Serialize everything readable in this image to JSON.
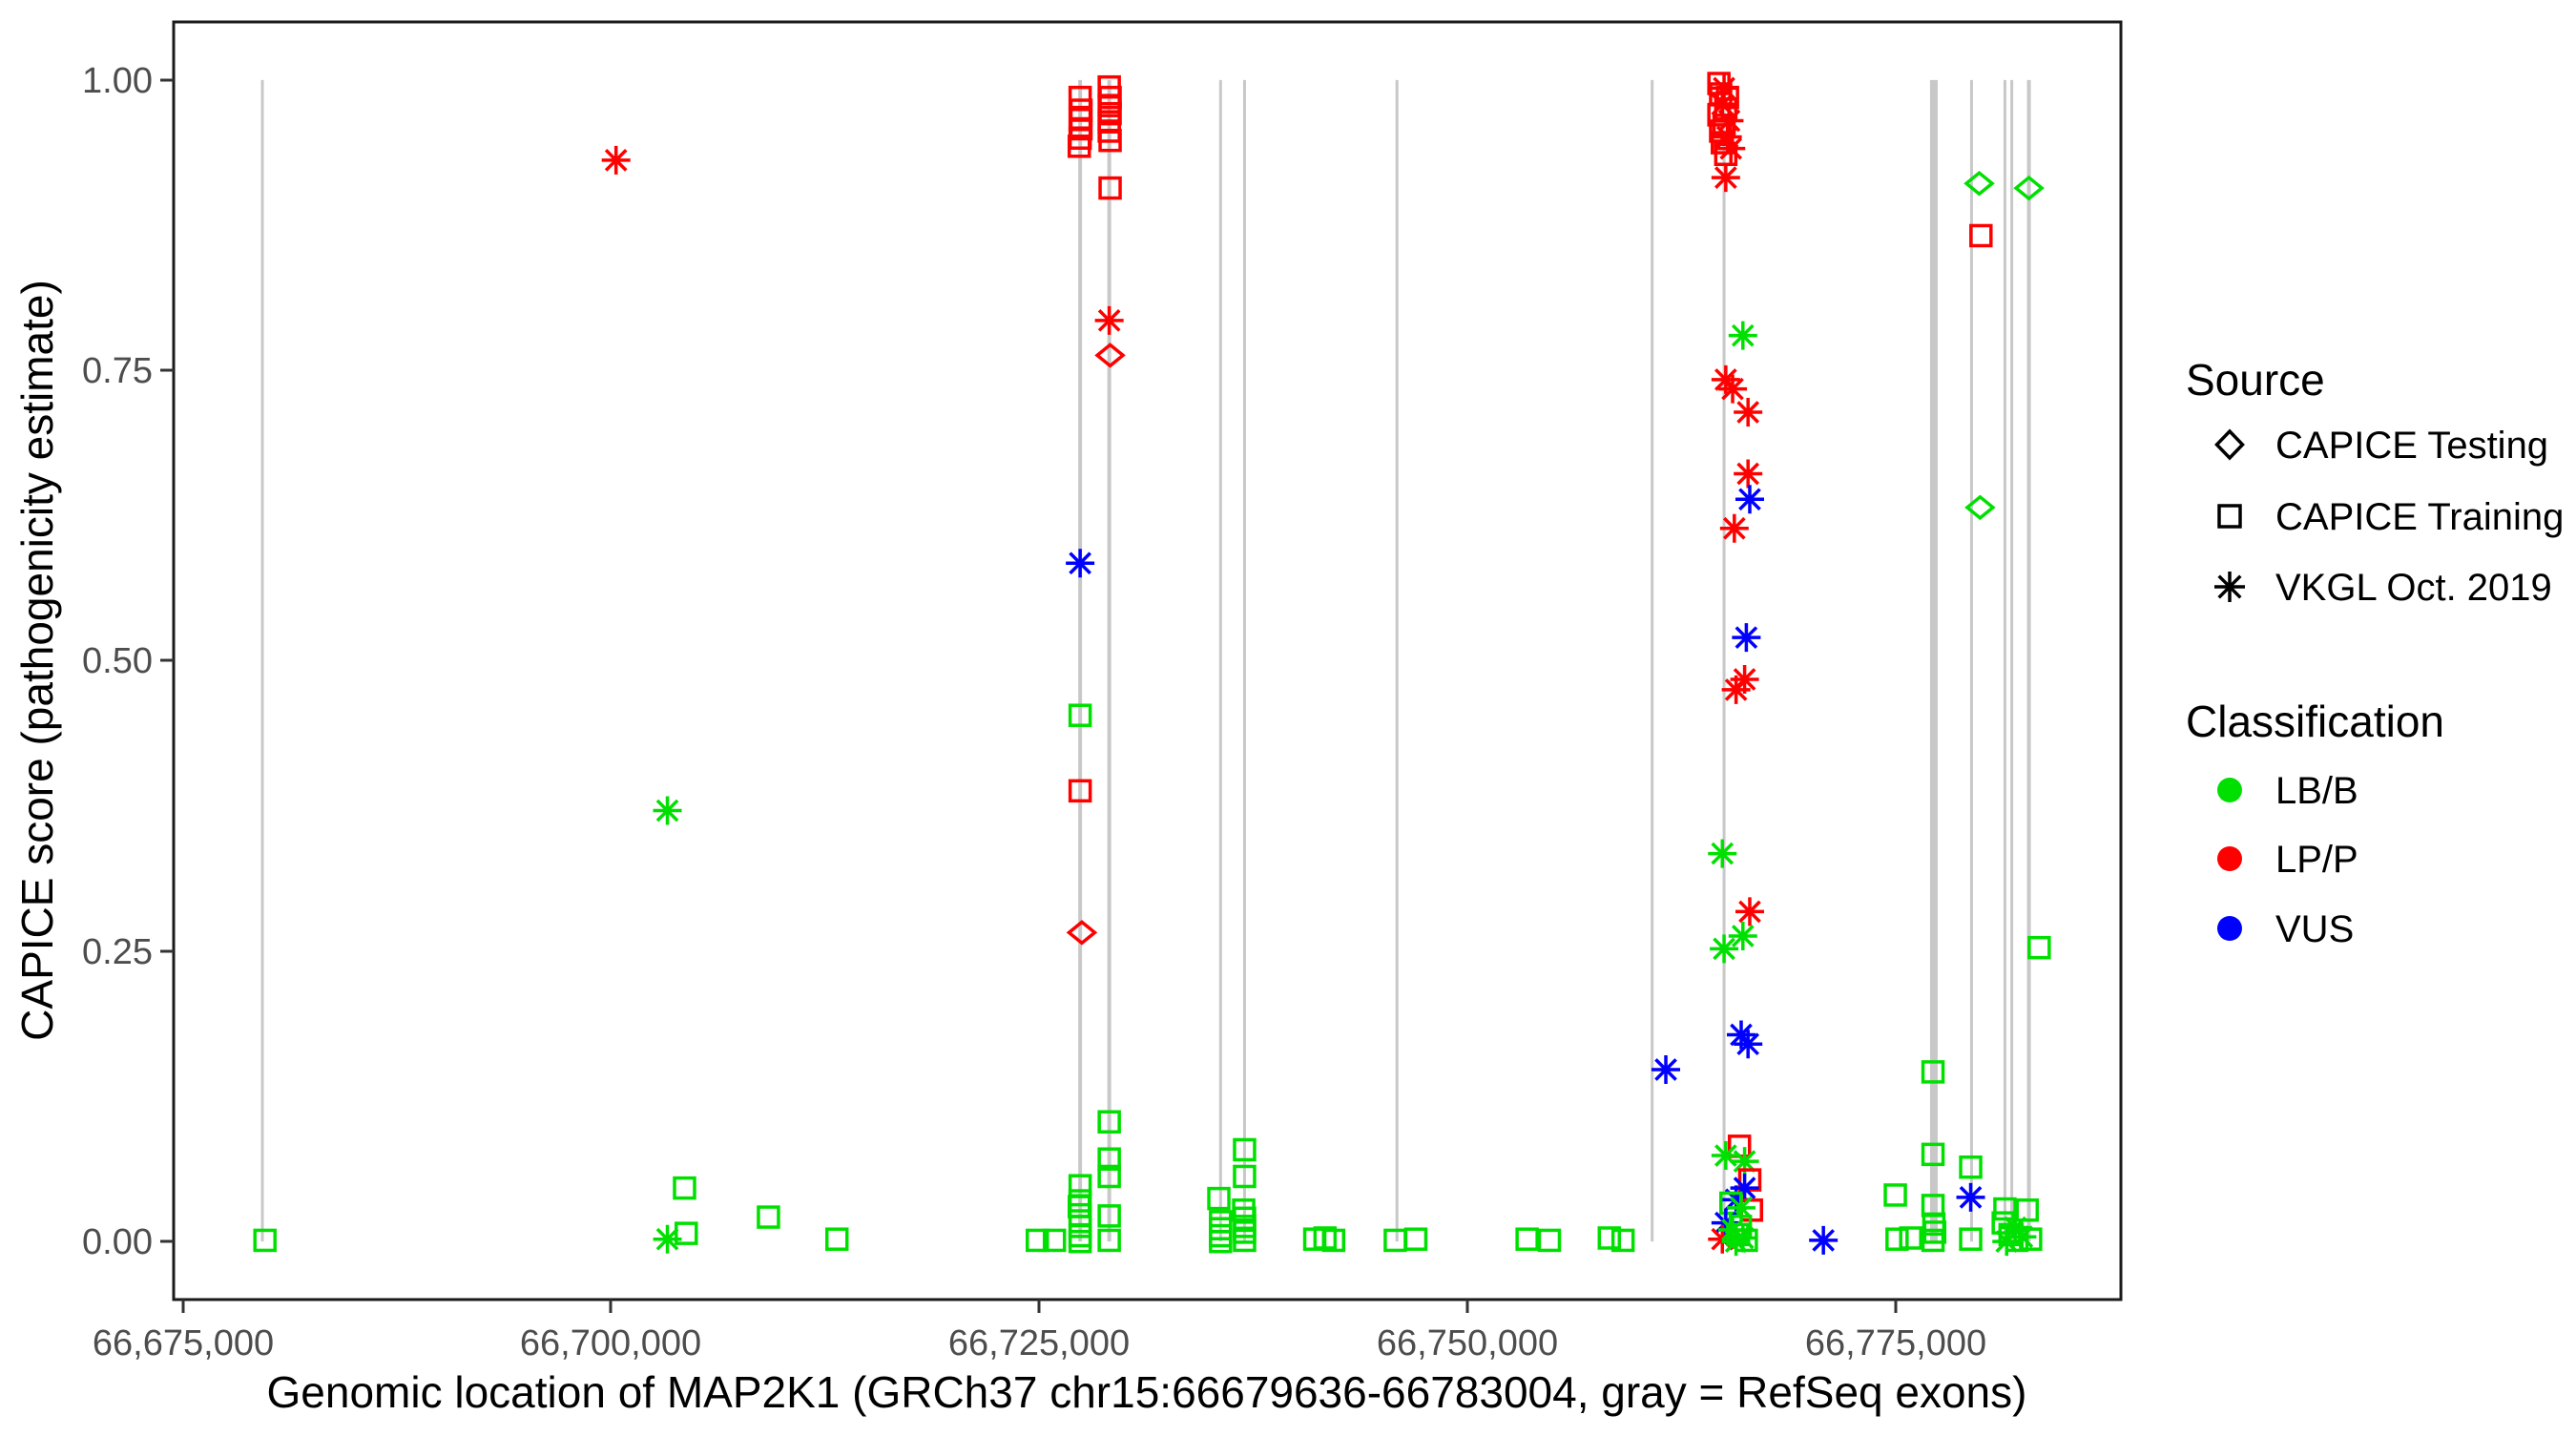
{
  "chart_data": {
    "type": "scatter",
    "title": "",
    "xlabel": "Genomic location of MAP2K1 (GRCh37 chr15:66679636-66783004, gray = RefSeq exons)",
    "ylabel": "CAPICE score (pathogenicity estimate)",
    "xlim": [
      66674468,
      66788172
    ],
    "ylim": [
      -0.05,
      1.05
    ],
    "grid": false,
    "legend_position": "right",
    "x_ticks": [
      {
        "value": 66675000,
        "label": "66,675,000"
      },
      {
        "value": 66700000,
        "label": "66,700,000"
      },
      {
        "value": 66725000,
        "label": "66,725,000"
      },
      {
        "value": 66750000,
        "label": "66,750,000"
      },
      {
        "value": 66775000,
        "label": "66,775,000"
      }
    ],
    "y_ticks": [
      {
        "value": 0.0,
        "label": "0.00"
      },
      {
        "value": 0.25,
        "label": "0.25"
      },
      {
        "value": 0.5,
        "label": "0.50"
      },
      {
        "value": 0.75,
        "label": "0.75"
      },
      {
        "value": 1.0,
        "label": "1.00"
      }
    ],
    "series_encoding": {
      "shape_source": {
        "d": "CAPICE Testing",
        "s": "CAPICE Training",
        "a": "VKGL Oct. 2019"
      },
      "color_classification": {
        "g": "LB/B",
        "r": "LP/P",
        "b": "VUS"
      }
    },
    "colors": {
      "g": "#00E000",
      "r": "#FF0000",
      "b": "#0000FF"
    },
    "exon_segments": {
      "color": "#C8C8C8",
      "y_from": 0,
      "y_to": 1,
      "lines": [
        {
          "loc": 66679650,
          "w": 3
        },
        {
          "loc": 66727400,
          "w": 4
        },
        {
          "loc": 66729100,
          "w": 4
        },
        {
          "loc": 66735600,
          "w": 3
        },
        {
          "loc": 66737000,
          "w": 3
        },
        {
          "loc": 66745900,
          "w": 3
        },
        {
          "loc": 66760800,
          "w": 3
        },
        {
          "loc": 66765000,
          "w": 3
        },
        {
          "loc": 66777250,
          "w": 8
        },
        {
          "loc": 66779450,
          "w": 3
        },
        {
          "loc": 66781400,
          "w": 3
        },
        {
          "loc": 66781800,
          "w": 3
        },
        {
          "loc": 66782800,
          "w": 4
        }
      ]
    },
    "points": [
      [
        66679800,
        0.001,
        "s",
        "g"
      ],
      [
        66700300,
        0.931,
        "a",
        "r"
      ],
      [
        66703300,
        0.371,
        "a",
        "g"
      ],
      [
        66704300,
        0.046,
        "s",
        "g"
      ],
      [
        66703300,
        0.002,
        "a",
        "g"
      ],
      [
        66704400,
        0.007,
        "s",
        "g"
      ],
      [
        66709200,
        0.021,
        "s",
        "g"
      ],
      [
        66713200,
        0.002,
        "s",
        "g"
      ],
      [
        66724900,
        0.001,
        "s",
        "g"
      ],
      [
        66725900,
        0.001,
        "s",
        "g"
      ],
      [
        66727400,
        0.985,
        "s",
        "r"
      ],
      [
        66727450,
        0.974,
        "s",
        "r"
      ],
      [
        66727400,
        0.966,
        "s",
        "r"
      ],
      [
        66727450,
        0.958,
        "s",
        "r"
      ],
      [
        66727400,
        0.95,
        "s",
        "r"
      ],
      [
        66727350,
        0.943,
        "s",
        "r"
      ],
      [
        66727400,
        0.584,
        "a",
        "b"
      ],
      [
        66727400,
        0.453,
        "s",
        "g"
      ],
      [
        66727400,
        0.388,
        "s",
        "r"
      ],
      [
        66727500,
        0.266,
        "d",
        "r"
      ],
      [
        66727400,
        0.048,
        "s",
        "g"
      ],
      [
        66727400,
        0.035,
        "s",
        "g"
      ],
      [
        66727350,
        0.03,
        "s",
        "g"
      ],
      [
        66727400,
        0.023,
        "s",
        "g"
      ],
      [
        66727400,
        0.013,
        "s",
        "g"
      ],
      [
        66727400,
        0.005,
        "s",
        "g"
      ],
      [
        66727400,
        0.0,
        "s",
        "g"
      ],
      [
        66729100,
        0.994,
        "s",
        "r"
      ],
      [
        66729150,
        0.985,
        "s",
        "r"
      ],
      [
        66729100,
        0.978,
        "s",
        "r"
      ],
      [
        66729150,
        0.971,
        "s",
        "r"
      ],
      [
        66729100,
        0.964,
        "s",
        "r"
      ],
      [
        66729100,
        0.956,
        "s",
        "r"
      ],
      [
        66729150,
        0.948,
        "s",
        "r"
      ],
      [
        66729150,
        0.907,
        "s",
        "r"
      ],
      [
        66729100,
        0.793,
        "a",
        "r"
      ],
      [
        66729150,
        0.763,
        "d",
        "r"
      ],
      [
        66729100,
        0.103,
        "s",
        "g"
      ],
      [
        66729100,
        0.071,
        "s",
        "g"
      ],
      [
        66729100,
        0.056,
        "s",
        "g"
      ],
      [
        66729100,
        0.022,
        "s",
        "g"
      ],
      [
        66729100,
        0.001,
        "s",
        "g"
      ],
      [
        66735500,
        0.037,
        "s",
        "g"
      ],
      [
        66735600,
        0.017,
        "s",
        "g"
      ],
      [
        66735600,
        0.011,
        "s",
        "g"
      ],
      [
        66735600,
        0.005,
        "s",
        "g"
      ],
      [
        66735600,
        0.0,
        "s",
        "g"
      ],
      [
        66737000,
        0.079,
        "s",
        "g"
      ],
      [
        66737000,
        0.056,
        "s",
        "g"
      ],
      [
        66736950,
        0.027,
        "s",
        "g"
      ],
      [
        66737000,
        0.02,
        "s",
        "g"
      ],
      [
        66737000,
        0.013,
        "s",
        "g"
      ],
      [
        66737000,
        0.008,
        "s",
        "g"
      ],
      [
        66737000,
        0.001,
        "s",
        "g"
      ],
      [
        66741100,
        0.002,
        "s",
        "g"
      ],
      [
        66741700,
        0.003,
        "s",
        "g"
      ],
      [
        66742200,
        0.001,
        "s",
        "g"
      ],
      [
        66745800,
        0.001,
        "s",
        "g"
      ],
      [
        66747000,
        0.002,
        "s",
        "g"
      ],
      [
        66753500,
        0.002,
        "s",
        "g"
      ],
      [
        66754800,
        0.001,
        "s",
        "g"
      ],
      [
        66758300,
        0.003,
        "s",
        "g"
      ],
      [
        66759100,
        0.001,
        "s",
        "g"
      ],
      [
        66764700,
        0.997,
        "s",
        "r"
      ],
      [
        66765000,
        0.993,
        "a",
        "r"
      ],
      [
        66764800,
        0.988,
        "s",
        "r"
      ],
      [
        66765200,
        0.985,
        "s",
        "r"
      ],
      [
        66764900,
        0.979,
        "a",
        "r"
      ],
      [
        66765100,
        0.975,
        "s",
        "r"
      ],
      [
        66764700,
        0.97,
        "s",
        "r"
      ],
      [
        66765300,
        0.965,
        "a",
        "r"
      ],
      [
        66765000,
        0.961,
        "s",
        "r"
      ],
      [
        66764800,
        0.956,
        "s",
        "r"
      ],
      [
        66765200,
        0.951,
        "a",
        "r"
      ],
      [
        66764900,
        0.946,
        "s",
        "r"
      ],
      [
        66765400,
        0.941,
        "a",
        "r"
      ],
      [
        66765100,
        0.936,
        "s",
        "r"
      ],
      [
        66765100,
        0.916,
        "a",
        "r"
      ],
      [
        66766100,
        0.78,
        "a",
        "g"
      ],
      [
        66765100,
        0.742,
        "a",
        "r"
      ],
      [
        66765500,
        0.734,
        "a",
        "r"
      ],
      [
        66766400,
        0.714,
        "a",
        "r"
      ],
      [
        66766400,
        0.661,
        "a",
        "r"
      ],
      [
        66766500,
        0.639,
        "a",
        "b"
      ],
      [
        66765600,
        0.614,
        "a",
        "r"
      ],
      [
        66766300,
        0.52,
        "a",
        "b"
      ],
      [
        66766200,
        0.484,
        "a",
        "r"
      ],
      [
        66765700,
        0.475,
        "a",
        "r"
      ],
      [
        66764900,
        0.334,
        "a",
        "g"
      ],
      [
        66766500,
        0.284,
        "a",
        "r"
      ],
      [
        66766100,
        0.263,
        "a",
        "g"
      ],
      [
        66765000,
        0.252,
        "a",
        "g"
      ],
      [
        66766000,
        0.178,
        "a",
        "b"
      ],
      [
        66766400,
        0.17,
        "a",
        "b"
      ],
      [
        66761600,
        0.148,
        "a",
        "b"
      ],
      [
        66765900,
        0.082,
        "s",
        "r"
      ],
      [
        66765100,
        0.074,
        "a",
        "g"
      ],
      [
        66766200,
        0.069,
        "a",
        "g"
      ],
      [
        66766500,
        0.053,
        "s",
        "r"
      ],
      [
        66766200,
        0.046,
        "a",
        "b"
      ],
      [
        66765700,
        0.036,
        "a",
        "b"
      ],
      [
        66765400,
        0.033,
        "s",
        "g"
      ],
      [
        66766600,
        0.027,
        "s",
        "r"
      ],
      [
        66766000,
        0.029,
        "a",
        "g"
      ],
      [
        66765100,
        0.016,
        "a",
        "b"
      ],
      [
        66764900,
        0.002,
        "a",
        "r"
      ],
      [
        66765500,
        0.01,
        "a",
        "g"
      ],
      [
        66765800,
        0.006,
        "s",
        "g"
      ],
      [
        66766100,
        0.003,
        "a",
        "g"
      ],
      [
        66766300,
        0.001,
        "s",
        "g"
      ],
      [
        66765700,
        0.0,
        "a",
        "g"
      ],
      [
        66765950,
        0.013,
        "s",
        "g"
      ],
      [
        66770800,
        0.001,
        "a",
        "b"
      ],
      [
        66775000,
        0.04,
        "s",
        "g"
      ],
      [
        66775100,
        0.002,
        "s",
        "g"
      ],
      [
        66775900,
        0.003,
        "s",
        "g"
      ],
      [
        66779900,
        0.911,
        "d",
        "g"
      ],
      [
        66782800,
        0.907,
        "d",
        "g"
      ],
      [
        66780000,
        0.866,
        "s",
        "r"
      ],
      [
        66779950,
        0.632,
        "d",
        "g"
      ],
      [
        66777200,
        0.146,
        "s",
        "g"
      ],
      [
        66777200,
        0.075,
        "s",
        "g"
      ],
      [
        66777200,
        0.031,
        "s",
        "g"
      ],
      [
        66777250,
        0.015,
        "s",
        "g"
      ],
      [
        66777300,
        0.008,
        "s",
        "g"
      ],
      [
        66777200,
        0.001,
        "s",
        "g"
      ],
      [
        66779400,
        0.064,
        "s",
        "g"
      ],
      [
        66779400,
        0.038,
        "a",
        "b"
      ],
      [
        66779400,
        0.002,
        "s",
        "g"
      ],
      [
        66781400,
        0.028,
        "s",
        "g"
      ],
      [
        66782700,
        0.027,
        "s",
        "g"
      ],
      [
        66781300,
        0.016,
        "s",
        "g"
      ],
      [
        66782000,
        0.012,
        "a",
        "g"
      ],
      [
        66781700,
        0.006,
        "s",
        "g"
      ],
      [
        66782400,
        0.004,
        "a",
        "g"
      ],
      [
        66782100,
        0.001,
        "s",
        "g"
      ],
      [
        66782900,
        0.002,
        "s",
        "g"
      ],
      [
        66781500,
        0.0,
        "a",
        "g"
      ],
      [
        66783400,
        0.253,
        "s",
        "g"
      ]
    ]
  },
  "legend": {
    "source": {
      "title": "Source",
      "items": [
        {
          "label": "CAPICE Testing",
          "shape": "diamond"
        },
        {
          "label": "CAPICE Training",
          "shape": "square"
        },
        {
          "label": "VKGL Oct. 2019",
          "shape": "asterisk"
        }
      ]
    },
    "classification": {
      "title": "Classification",
      "items": [
        {
          "label": "LB/B",
          "color": "#00E000"
        },
        {
          "label": "LP/P",
          "color": "#FF0000"
        },
        {
          "label": "VUS",
          "color": "#0000FF"
        }
      ]
    }
  }
}
